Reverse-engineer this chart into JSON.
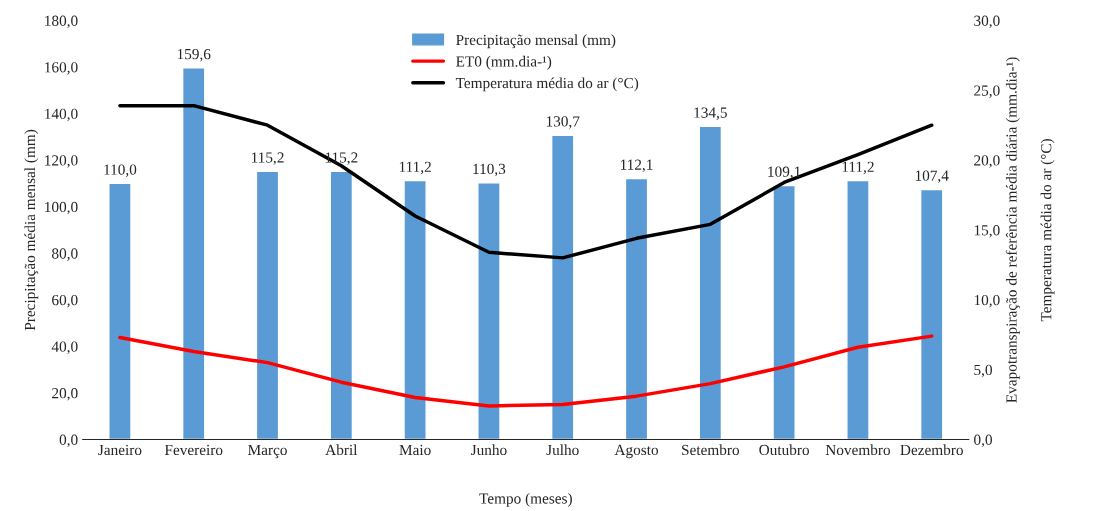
{
  "chart_data": {
    "type": "bar",
    "xlabel": "Tempo (meses)",
    "ylabel": "Precipitação média mensal (mm)",
    "y2label": "Evapotranspiração de referência média diária (mm.dia-¹)",
    "annotations": [
      "Temperatura média do ar (°C)"
    ],
    "categories": [
      "Janeiro",
      "Fevereiro",
      "Março",
      "Abril",
      "Maio",
      "Junho",
      "Julho",
      "Agosto",
      "Setembro",
      "Outubro",
      "Novembro",
      "Dezembro"
    ],
    "series": [
      {
        "name": "Precipitação mensal (mm)",
        "color": "#5b9bd5",
        "values": [
          110.0,
          159.6,
          115.2,
          115.2,
          111.2,
          110.3,
          130.7,
          112.1,
          134.5,
          109.1,
          111.2,
          107.4
        ],
        "value_labels": [
          "110,0",
          "159,6",
          "115,2",
          "115,2",
          "111,2",
          "110,3",
          "130,7",
          "112,1",
          "134,5",
          "109,1",
          "111,2",
          "107,4"
        ]
      },
      {
        "name": "ET0 (mm.dia-¹)",
        "type": "line",
        "axis": "y2",
        "color": "#ff0000",
        "values": [
          7.3,
          6.3,
          5.5,
          4.1,
          3.0,
          2.4,
          2.5,
          3.1,
          4.0,
          5.2,
          6.6,
          7.4
        ]
      },
      {
        "name": "Temperatura média do ar (°C)",
        "type": "line",
        "axis": "y2",
        "color": "#000000",
        "values": [
          23.9,
          23.9,
          22.5,
          19.6,
          16.0,
          13.4,
          13.0,
          14.4,
          15.4,
          18.4,
          20.4,
          22.5
        ]
      }
    ],
    "ylim": [
      0,
      180
    ],
    "yticks": [
      {
        "value": 0,
        "label": "0,0"
      },
      {
        "value": 20,
        "label": "20,0"
      },
      {
        "value": 40,
        "label": "40,0"
      },
      {
        "value": 60,
        "label": "60,0"
      },
      {
        "value": 80,
        "label": "80,0"
      },
      {
        "value": 100,
        "label": "100,0"
      },
      {
        "value": 120,
        "label": "120,0"
      },
      {
        "value": 140,
        "label": "140,0"
      },
      {
        "value": 160,
        "label": "160,0"
      },
      {
        "value": 180,
        "label": "180,0"
      }
    ],
    "y2lim": [
      0,
      30
    ],
    "y2ticks": [
      {
        "value": 0,
        "label": "0,0"
      },
      {
        "value": 5,
        "label": "5,0"
      },
      {
        "value": 10,
        "label": "10,0"
      },
      {
        "value": 15,
        "label": "15,0"
      },
      {
        "value": 20,
        "label": "20,0"
      },
      {
        "value": 25,
        "label": "25,0"
      },
      {
        "value": 30,
        "label": "30,0"
      }
    ],
    "legend": "top",
    "grid": false
  }
}
